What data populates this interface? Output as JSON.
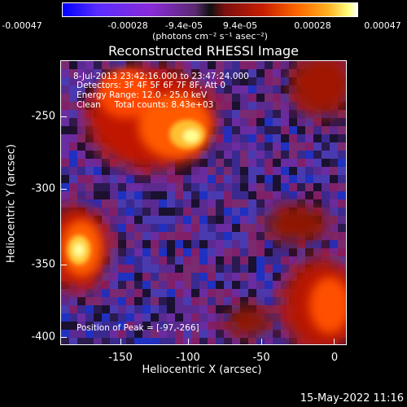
{
  "colorbar": {
    "ticks": [
      "-0.00047",
      "-0.00028",
      "-9.4e-05",
      "9.4e-05",
      "0.00028",
      "0.00047"
    ],
    "units": "(photons cm⁻² s⁻¹ asec⁻²)"
  },
  "title": "Reconstructed RHESSI Image",
  "annotations": {
    "time_range": "8-Jul-2013 23:42:16.000 to 23:47:24.000",
    "detectors": "Detectors: 3F 4F 5F 6F 7F 8F, Att 0",
    "energy": "Energy Range: 12.0 - 25.0 keV",
    "algorithm": "Clean     Total counts: 8.43e+03",
    "peak": "Position of Peak = [-97,-266]"
  },
  "axes": {
    "xlabel": "Heliocentric X (arcsec)",
    "ylabel": "Heliocentric Y (arcsec)",
    "xticks": [
      "-150",
      "-100",
      "-50",
      "0"
    ],
    "yticks": [
      "-250",
      "-300",
      "-350",
      "-400"
    ]
  },
  "timestamp": "15-May-2022 11:16",
  "colors": {
    "background": "#000000",
    "foreground": "#ffffff"
  }
}
